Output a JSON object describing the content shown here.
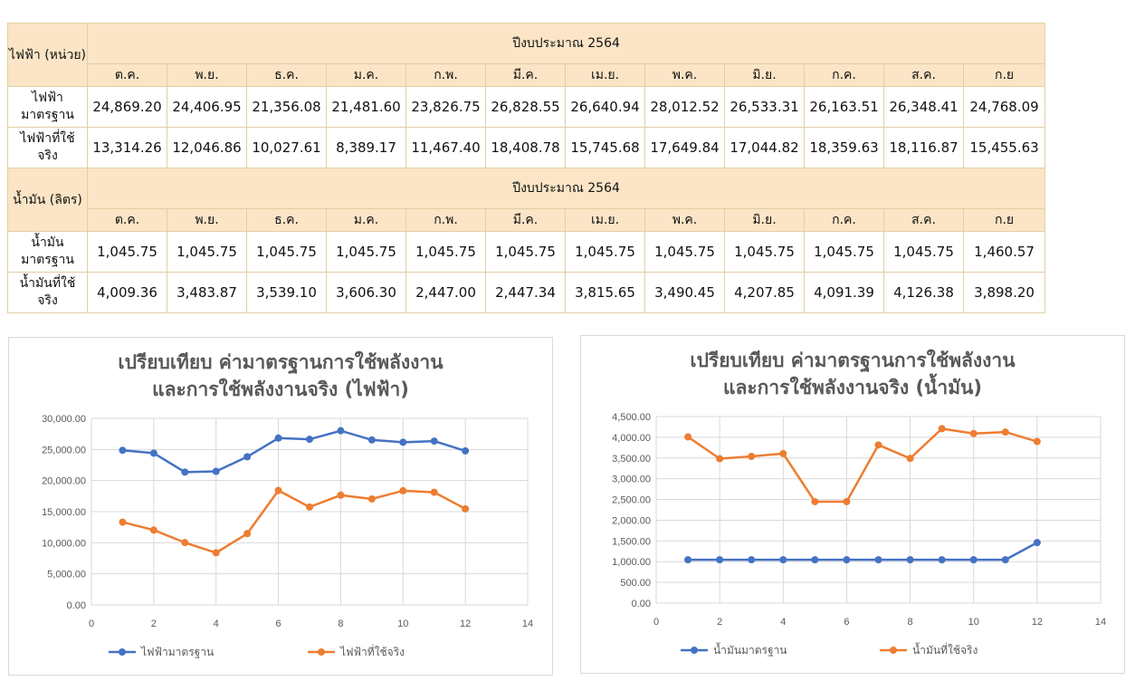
{
  "table": {
    "electricity": {
      "unit_label": "ไฟฟ้า (หน่วย)",
      "year_label": "ปีงบประมาณ 2564",
      "months": [
        "ต.ค.",
        "พ.ย.",
        "ธ.ค.",
        "ม.ค.",
        "ก.พ.",
        "มี.ค.",
        "เม.ย.",
        "พ.ค.",
        "มิ.ย.",
        "ก.ค.",
        "ส.ค.",
        "ก.ย"
      ],
      "rows": [
        {
          "label": "ไฟฟ้า มาตรฐาน",
          "values": [
            "24,869.20",
            "24,406.95",
            "21,356.08",
            "21,481.60",
            "23,826.75",
            "26,828.55",
            "26,640.94",
            "28,012.52",
            "26,533.31",
            "26,163.51",
            "26,348.41",
            "24,768.09"
          ]
        },
        {
          "label": "ไฟฟ้าที่ใช้ จริง",
          "values": [
            "13,314.26",
            "12,046.86",
            "10,027.61",
            "8,389.17",
            "11,467.40",
            "18,408.78",
            "15,745.68",
            "17,649.84",
            "17,044.82",
            "18,359.63",
            "18,116.87",
            "15,455.63"
          ]
        }
      ]
    },
    "oil": {
      "unit_label": "น้ำมัน (ลิตร)",
      "year_label": "ปีงบประมาณ 2564",
      "months": [
        "ต.ค.",
        "พ.ย.",
        "ธ.ค.",
        "ม.ค.",
        "ก.พ.",
        "มี.ค.",
        "เม.ย.",
        "พ.ค.",
        "มิ.ย.",
        "ก.ค.",
        "ส.ค.",
        "ก.ย"
      ],
      "rows": [
        {
          "label": "น้ำมัน มาตรฐาน",
          "values": [
            "1,045.75",
            "1,045.75",
            "1,045.75",
            "1,045.75",
            "1,045.75",
            "1,045.75",
            "1,045.75",
            "1,045.75",
            "1,045.75",
            "1,045.75",
            "1,045.75",
            "1,460.57"
          ]
        },
        {
          "label": "น้ำมันที่ใช้ จริง",
          "values": [
            "4,009.36",
            "3,483.87",
            "3,539.10",
            "3,606.30",
            "2,447.00",
            "2,447.34",
            "3,815.65",
            "3,490.45",
            "4,207.85",
            "4,091.39",
            "4,126.38",
            "3,898.20"
          ]
        }
      ]
    }
  },
  "colors": {
    "series_standard": "#4472c4",
    "series_actual": "#ed7d31",
    "grid": "#d9d9d9",
    "header_fill": "#fbe5c6",
    "border": "#e2cfa4"
  },
  "chart_data": [
    {
      "type": "scatter",
      "title_lines": [
        "เปรียบเทียบ ค่ามาตรฐานการใช้พลังงาน",
        "และการใช้พลังงานจริง (ไฟฟ้า)"
      ],
      "x": [
        1,
        2,
        3,
        4,
        5,
        6,
        7,
        8,
        9,
        10,
        11,
        12
      ],
      "xlim": [
        0,
        14
      ],
      "xticks": [
        0,
        2,
        4,
        6,
        8,
        10,
        12,
        14
      ],
      "ylim": [
        0,
        30000
      ],
      "yticks": [
        0,
        5000,
        10000,
        15000,
        20000,
        25000,
        30000
      ],
      "ytick_labels": [
        "0.00",
        "5,000.00",
        "10,000.00",
        "15,000.00",
        "20,000.00",
        "25,000.00",
        "30,000.00"
      ],
      "grid": true,
      "legend_position": "bottom",
      "series": [
        {
          "name": "ไฟฟ้ามาตรฐาน",
          "color": "#4472c4",
          "values": [
            24869.2,
            24406.95,
            21356.08,
            21481.6,
            23826.75,
            26828.55,
            26640.94,
            28012.52,
            26533.31,
            26163.51,
            26348.41,
            24768.09
          ]
        },
        {
          "name": "ไฟฟ้าที่ใช้จริง",
          "color": "#ed7d31",
          "values": [
            13314.26,
            12046.86,
            10027.61,
            8389.17,
            11467.4,
            18408.78,
            15745.68,
            17649.84,
            17044.82,
            18359.63,
            18116.87,
            15455.63
          ]
        }
      ]
    },
    {
      "type": "scatter",
      "title_lines": [
        "เปรียบเทียบ ค่ามาตรฐานการใช้พลังงาน",
        "และการใช้พลังงานจริง (น้ำมัน)"
      ],
      "x": [
        1,
        2,
        3,
        4,
        5,
        6,
        7,
        8,
        9,
        10,
        11,
        12
      ],
      "xlim": [
        0,
        14
      ],
      "xticks": [
        0,
        2,
        4,
        6,
        8,
        10,
        12,
        14
      ],
      "ylim": [
        0,
        4500
      ],
      "yticks": [
        0,
        500,
        1000,
        1500,
        2000,
        2500,
        3000,
        3500,
        4000,
        4500
      ],
      "ytick_labels": [
        "0.00",
        "500.00",
        "1,000.00",
        "1,500.00",
        "2,000.00",
        "2,500.00",
        "3,000.00",
        "3,500.00",
        "4,000.00",
        "4,500.00"
      ],
      "grid": true,
      "legend_position": "bottom",
      "series": [
        {
          "name": "น้ำมันมาตรฐาน",
          "color": "#4472c4",
          "values": [
            1045.75,
            1045.75,
            1045.75,
            1045.75,
            1045.75,
            1045.75,
            1045.75,
            1045.75,
            1045.75,
            1045.75,
            1045.75,
            1460.57
          ]
        },
        {
          "name": "น้ำมันที่ใช้จริง",
          "color": "#ed7d31",
          "values": [
            4009.36,
            3483.87,
            3539.1,
            3606.3,
            2447.0,
            2447.34,
            3815.65,
            3490.45,
            4207.85,
            4091.39,
            4126.38,
            3898.2
          ]
        }
      ]
    }
  ]
}
